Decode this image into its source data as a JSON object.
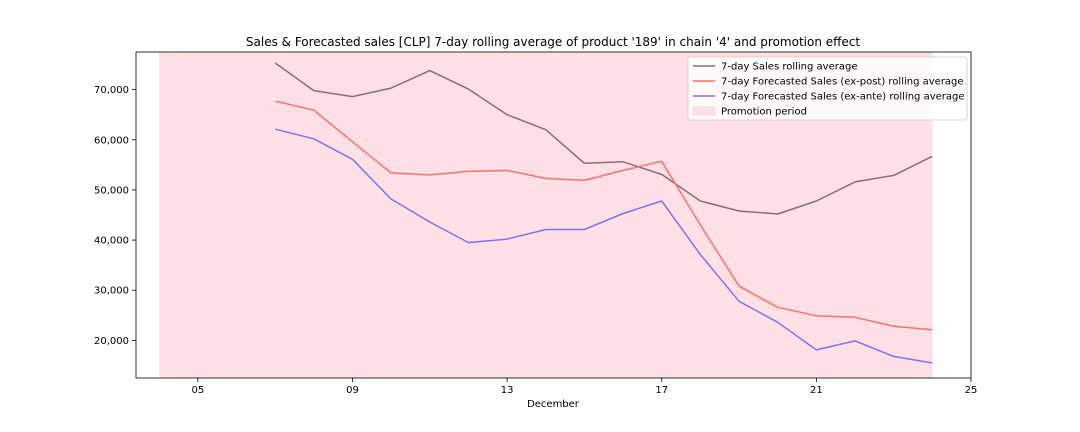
{
  "chart_data": {
    "type": "line",
    "title": "Sales & Forecasted sales [CLP] 7-day rolling average of product '189' in chain '4' and promotion effect",
    "xlabel": "December",
    "ylabel": "",
    "x": [
      7,
      8,
      9,
      10,
      11,
      12,
      13,
      14,
      15,
      16,
      17,
      18,
      19,
      20,
      21,
      22,
      23,
      24
    ],
    "xlim": [
      3.4,
      25
    ],
    "ylim": [
      12500,
      77500
    ],
    "x_ticks": [
      5,
      9,
      13,
      17,
      21,
      25
    ],
    "x_tick_labels": [
      "05",
      "09",
      "13",
      "17",
      "21",
      "25"
    ],
    "y_ticks": [
      20000,
      30000,
      40000,
      50000,
      60000,
      70000
    ],
    "y_tick_labels": [
      "20,000",
      "30,000",
      "40,000",
      "50,000",
      "60,000",
      "70,000"
    ],
    "grid": false,
    "legend_position": "top-right",
    "promotion_period": {
      "name": "Promotion period",
      "start": 4,
      "end": 24,
      "color": "#ffe0e4"
    },
    "series": [
      {
        "name": "7-day Sales rolling average",
        "color": "#8c6d72",
        "values": [
          75300,
          69800,
          68600,
          70300,
          73800,
          70100,
          65000,
          62000,
          55300,
          55600,
          53100,
          47800,
          45800,
          45200,
          47800,
          51600,
          52900,
          56700
        ]
      },
      {
        "name": "7-day Forecasted Sales (ex-post) rolling average",
        "color": "#ff6f6f",
        "values": [
          67700,
          65900,
          59600,
          53400,
          53000,
          53700,
          53900,
          52300,
          51900,
          53900,
          55700,
          43000,
          30800,
          26600,
          24900,
          24600,
          22800,
          22100
        ]
      },
      {
        "name": "7-day Forecasted Sales (ex-ante) rolling average",
        "color": "#7b72ff",
        "values": [
          62100,
          60200,
          56100,
          48200,
          43600,
          39500,
          40200,
          42100,
          42100,
          45300,
          47800,
          37100,
          27800,
          23600,
          18100,
          19900,
          16800,
          15500
        ]
      }
    ]
  }
}
